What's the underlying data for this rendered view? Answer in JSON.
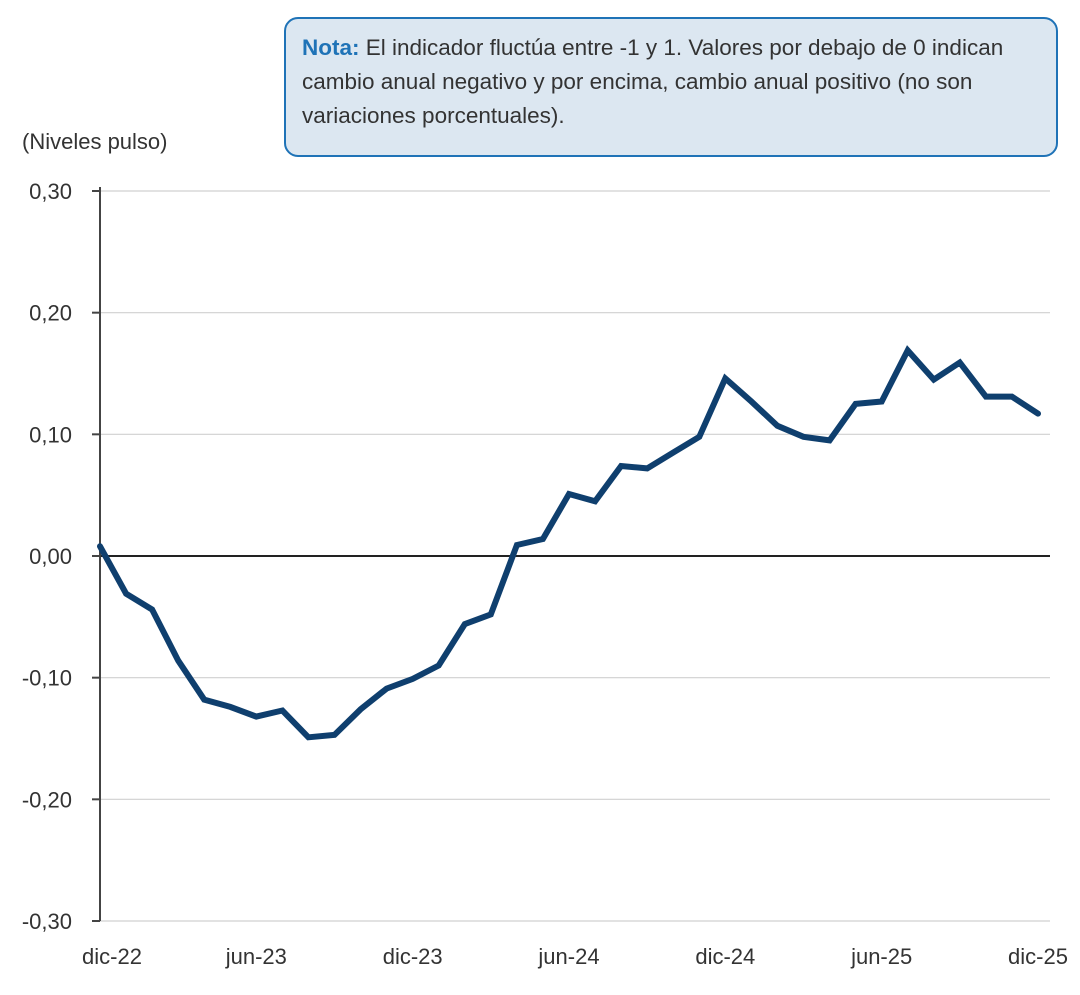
{
  "note": {
    "label": "Nota:",
    "text": " El indicador fluctúa entre -1 y 1. Valores por debajo de 0 indican cambio anual negativo y por encima, cambio anual positivo (no son variaciones porcentuales)."
  },
  "chart_data": {
    "type": "line",
    "ylabel": "(Niveles pulso)",
    "ylim": [
      -0.3,
      0.3
    ],
    "yticks": [
      0.3,
      0.2,
      0.1,
      0.0,
      -0.1,
      -0.2,
      -0.3
    ],
    "ytick_labels": [
      "0,30",
      "0,20",
      "0,10",
      "0,00",
      "-0,10",
      "-0,20",
      "-0,30"
    ],
    "xtick_labels": [
      "dic-22",
      "jun-23",
      "dic-23",
      "jun-24",
      "dic-24",
      "jun-25",
      "dic-25"
    ],
    "grid": true,
    "line_color": "#0f3f6e",
    "categories": [
      "dic-22",
      "ene-23",
      "feb-23",
      "mar-23",
      "abr-23",
      "may-23",
      "jun-23",
      "jul-23",
      "ago-23",
      "sep-23",
      "oct-23",
      "nov-23",
      "dic-23",
      "ene-24",
      "feb-24",
      "mar-24",
      "abr-24",
      "may-24",
      "jun-24",
      "jul-24",
      "ago-24",
      "sep-24",
      "oct-24",
      "nov-24",
      "dic-24",
      "ene-25",
      "feb-25",
      "mar-25",
      "abr-25",
      "may-25",
      "jun-25",
      "jul-25",
      "ago-25",
      "sep-25",
      "oct-25",
      "nov-25",
      "dic-25"
    ],
    "values": [
      0.008,
      -0.031,
      -0.044,
      -0.086,
      -0.118,
      -0.124,
      -0.132,
      -0.127,
      -0.149,
      -0.147,
      -0.126,
      -0.109,
      -0.101,
      -0.09,
      -0.056,
      -0.048,
      0.009,
      0.014,
      0.051,
      0.045,
      0.074,
      0.072,
      0.085,
      0.098,
      0.146,
      0.127,
      0.107,
      0.098,
      0.095,
      0.125,
      0.127,
      0.169,
      0.145,
      0.159,
      0.131,
      0.131,
      0.117
    ]
  }
}
